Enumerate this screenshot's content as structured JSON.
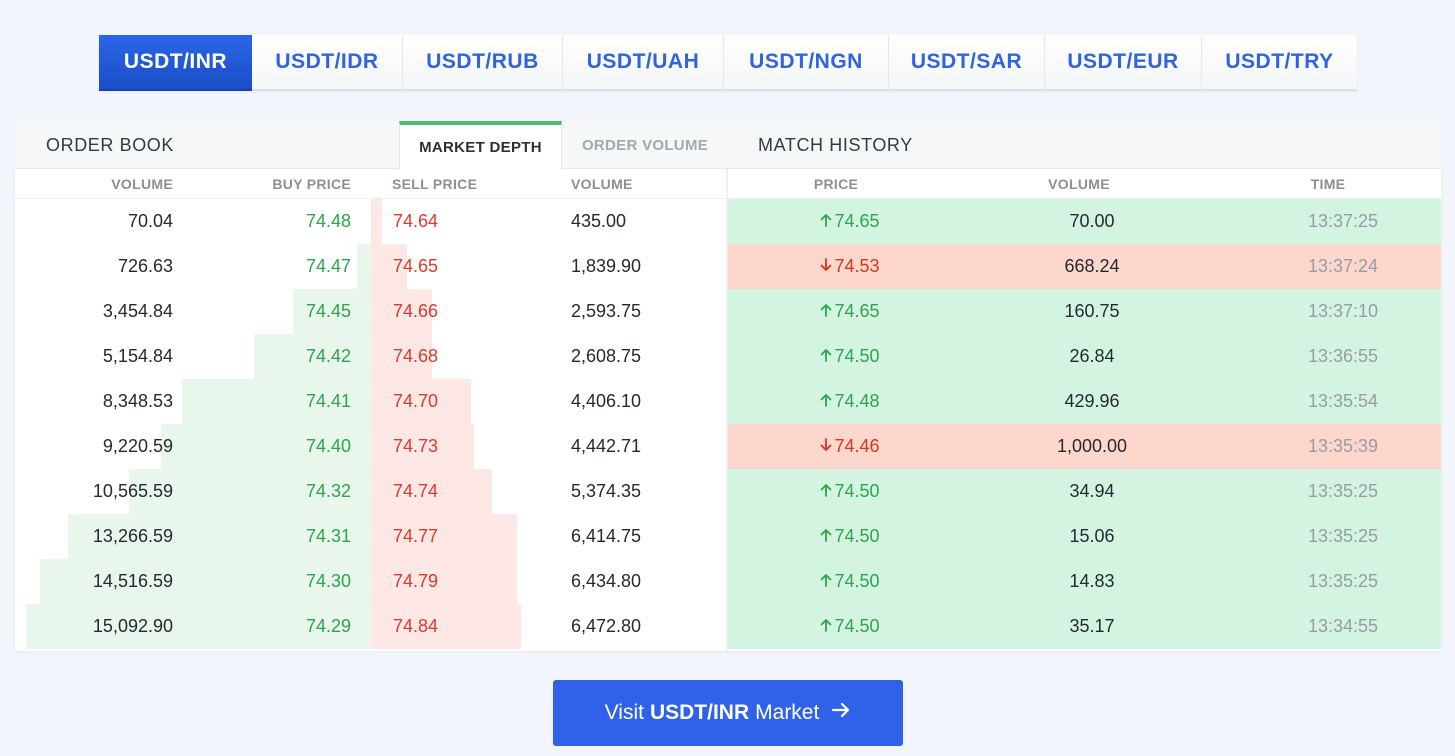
{
  "pair_tabs": [
    {
      "label": "USDT/INR",
      "active": true
    },
    {
      "label": "USDT/IDR",
      "active": false
    },
    {
      "label": "USDT/RUB",
      "active": false
    },
    {
      "label": "USDT/UAH",
      "active": false
    },
    {
      "label": "USDT/NGN",
      "active": false
    },
    {
      "label": "USDT/SAR",
      "active": false
    },
    {
      "label": "USDT/EUR",
      "active": false
    },
    {
      "label": "USDT/TRY",
      "active": false
    }
  ],
  "panel": {
    "order_book_title": "ORDER BOOK",
    "tabs": [
      {
        "label": "MARKET DEPTH",
        "active": true
      },
      {
        "label": "ORDER VOLUME",
        "active": false
      }
    ],
    "match_history_title": "MATCH HISTORY"
  },
  "order_book": {
    "headers": {
      "buy_volume": "VOLUME",
      "buy_price": "BUY PRICE",
      "sell_price": "SELL PRICE",
      "sell_volume": "VOLUME"
    },
    "rows": [
      {
        "buy_volume": "70.04",
        "buy_price": "74.48",
        "sell_price": "74.64",
        "sell_volume": "435.00",
        "buy_depth": 0.0,
        "sell_depth": 0.03
      },
      {
        "buy_volume": "726.63",
        "buy_price": "74.47",
        "sell_price": "74.65",
        "sell_volume": "1,839.90",
        "buy_depth": 0.04,
        "sell_depth": 0.1
      },
      {
        "buy_volume": "3,454.84",
        "buy_price": "74.45",
        "sell_price": "74.66",
        "sell_volume": "2,593.75",
        "buy_depth": 0.22,
        "sell_depth": 0.17
      },
      {
        "buy_volume": "5,154.84",
        "buy_price": "74.42",
        "sell_price": "74.68",
        "sell_volume": "2,608.75",
        "buy_depth": 0.33,
        "sell_depth": 0.17
      },
      {
        "buy_volume": "8,348.53",
        "buy_price": "74.41",
        "sell_price": "74.70",
        "sell_volume": "4,406.10",
        "buy_depth": 0.53,
        "sell_depth": 0.28
      },
      {
        "buy_volume": "9,220.59",
        "buy_price": "74.40",
        "sell_price": "74.73",
        "sell_volume": "4,442.71",
        "buy_depth": 0.59,
        "sell_depth": 0.29
      },
      {
        "buy_volume": "10,565.59",
        "buy_price": "74.32",
        "sell_price": "74.74",
        "sell_volume": "5,374.35",
        "buy_depth": 0.68,
        "sell_depth": 0.34
      },
      {
        "buy_volume": "13,266.59",
        "buy_price": "74.31",
        "sell_price": "74.77",
        "sell_volume": "6,414.75",
        "buy_depth": 0.85,
        "sell_depth": 0.41
      },
      {
        "buy_volume": "14,516.59",
        "buy_price": "74.30",
        "sell_price": "74.79",
        "sell_volume": "6,434.80",
        "buy_depth": 0.93,
        "sell_depth": 0.41
      },
      {
        "buy_volume": "15,092.90",
        "buy_price": "74.29",
        "sell_price": "74.84",
        "sell_volume": "6,472.80",
        "buy_depth": 0.97,
        "sell_depth": 0.42
      }
    ]
  },
  "match_history": {
    "headers": {
      "price": "PRICE",
      "volume": "VOLUME",
      "time": "TIME"
    },
    "rows": [
      {
        "direction": "up",
        "price": "74.65",
        "volume": "70.00",
        "time": "13:37:25"
      },
      {
        "direction": "down",
        "price": "74.53",
        "volume": "668.24",
        "time": "13:37:24"
      },
      {
        "direction": "up",
        "price": "74.65",
        "volume": "160.75",
        "time": "13:37:10"
      },
      {
        "direction": "up",
        "price": "74.50",
        "volume": "26.84",
        "time": "13:36:55"
      },
      {
        "direction": "up",
        "price": "74.48",
        "volume": "429.96",
        "time": "13:35:54"
      },
      {
        "direction": "down",
        "price": "74.46",
        "volume": "1,000.00",
        "time": "13:35:39"
      },
      {
        "direction": "up",
        "price": "74.50",
        "volume": "34.94",
        "time": "13:35:25"
      },
      {
        "direction": "up",
        "price": "74.50",
        "volume": "15.06",
        "time": "13:35:25"
      },
      {
        "direction": "up",
        "price": "74.50",
        "volume": "14.83",
        "time": "13:35:25"
      },
      {
        "direction": "up",
        "price": "74.50",
        "volume": "35.17",
        "time": "13:34:55"
      }
    ]
  },
  "cta": {
    "prefix": "Visit",
    "pair": "USDT/INR",
    "suffix": "Market",
    "icon": "arrow-right-icon"
  },
  "colors": {
    "accent": "#2f62e9",
    "buy": "#2ea54c",
    "sell": "#e0392b",
    "up_row": "#d4f4e2",
    "down_row": "#fdd6cc"
  }
}
